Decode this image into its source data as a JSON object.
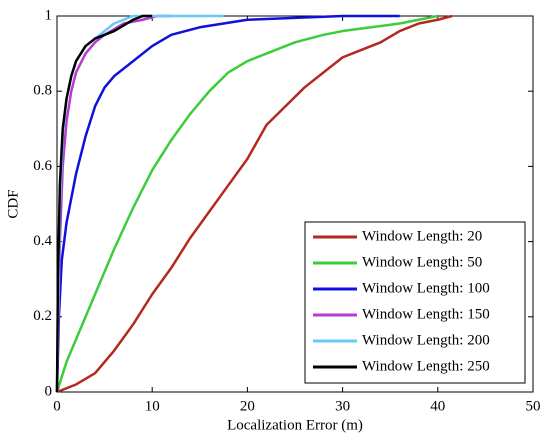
{
  "chart_data": {
    "type": "line",
    "xlabel": "Localization Error (m)",
    "ylabel": "CDF",
    "xlim": [
      0,
      50
    ],
    "xticks": [
      0,
      10,
      20,
      30,
      40,
      50
    ],
    "ylim": [
      0,
      1
    ],
    "yticks": [
      0,
      0.2,
      0.4,
      0.6,
      0.8,
      1
    ],
    "legend": "lower right",
    "series": [
      {
        "name": "Window Length: 20",
        "color": "#b5281f",
        "x": [
          0,
          2,
          4,
          6,
          8,
          10,
          12,
          14,
          16,
          18,
          20,
          22,
          24,
          26,
          28,
          30,
          32,
          34,
          36,
          38,
          40,
          41.5
        ],
        "values": [
          0,
          0.02,
          0.05,
          0.11,
          0.18,
          0.26,
          0.33,
          0.41,
          0.48,
          0.55,
          0.62,
          0.71,
          0.76,
          0.81,
          0.85,
          0.89,
          0.91,
          0.93,
          0.96,
          0.98,
          0.99,
          1
        ]
      },
      {
        "name": "Window Length: 50",
        "color": "#3ccc3c",
        "x": [
          0,
          1,
          2,
          4,
          6,
          8,
          10,
          12,
          14,
          16,
          18,
          20,
          22,
          25,
          28,
          30,
          33,
          36,
          38,
          40
        ],
        "values": [
          0,
          0.08,
          0.14,
          0.26,
          0.38,
          0.49,
          0.59,
          0.67,
          0.74,
          0.8,
          0.85,
          0.88,
          0.9,
          0.93,
          0.95,
          0.96,
          0.97,
          0.98,
          0.99,
          1
        ]
      },
      {
        "name": "Window Length: 100",
        "color": "#1010dd",
        "x": [
          0,
          0.2,
          0.5,
          1,
          2,
          3,
          4,
          5,
          6,
          8,
          10,
          12,
          15,
          20,
          25,
          30,
          36
        ],
        "values": [
          0,
          0.2,
          0.35,
          0.45,
          0.58,
          0.68,
          0.76,
          0.81,
          0.84,
          0.88,
          0.92,
          0.95,
          0.97,
          0.99,
          0.995,
          1,
          1
        ]
      },
      {
        "name": "Window Length: 150",
        "color": "#b43cd2",
        "x": [
          0,
          0.1,
          0.3,
          0.6,
          1,
          1.5,
          2,
          3,
          4,
          5,
          7,
          9,
          10.5,
          12
        ],
        "values": [
          0,
          0.15,
          0.4,
          0.6,
          0.72,
          0.8,
          0.85,
          0.9,
          0.93,
          0.95,
          0.98,
          0.99,
          1,
          1
        ]
      },
      {
        "name": "Window Length: 200",
        "color": "#6cc8f4",
        "x": [
          0,
          0.1,
          0.3,
          0.6,
          1,
          1.5,
          2,
          3,
          4,
          5,
          6,
          8,
          17.5
        ],
        "values": [
          0,
          0.2,
          0.5,
          0.68,
          0.78,
          0.84,
          0.88,
          0.92,
          0.94,
          0.96,
          0.98,
          1,
          1
        ]
      },
      {
        "name": "Window Length: 250",
        "color": "#000000",
        "x": [
          0,
          0.1,
          0.3,
          0.6,
          1,
          1.5,
          2,
          3,
          4,
          6,
          8,
          9,
          10
        ],
        "values": [
          0,
          0.3,
          0.55,
          0.7,
          0.78,
          0.84,
          0.88,
          0.92,
          0.94,
          0.96,
          0.99,
          1,
          1
        ]
      }
    ]
  }
}
